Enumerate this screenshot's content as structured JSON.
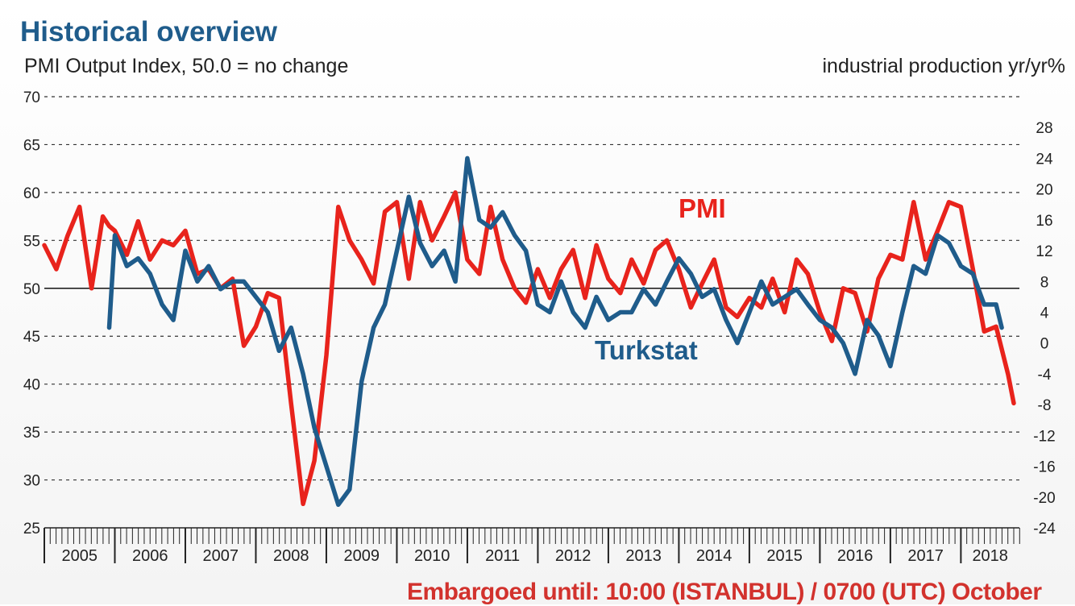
{
  "header": {
    "title": "Historical overview",
    "left_axis_label": "PMI Output Index, 50.0 = no change",
    "right_axis_label": "industrial production yr/yr%"
  },
  "footer": {
    "embargo": "Embargoed until: 10:00 (ISTANBUL) / 0700 (UTC) October"
  },
  "colors": {
    "pmi": "#e8231c",
    "turkstat": "#1f5c8b",
    "title": "#1f5c8b"
  },
  "chart_data": {
    "type": "line",
    "title": "Historical overview",
    "ylabel": "PMI Output Index, 50.0 = no change",
    "y2label": "industrial production yr/yr%",
    "ylim": [
      25,
      70
    ],
    "y2lim": [
      -24,
      32
    ],
    "yticks": [
      25,
      30,
      35,
      40,
      45,
      50,
      55,
      60,
      65,
      70
    ],
    "y2ticks": [
      -24,
      -20,
      -16,
      -12,
      -8,
      -4,
      0,
      4,
      8,
      12,
      16,
      20,
      24,
      28
    ],
    "xlim": [
      2005.0,
      2018.83
    ],
    "year_labels": [
      "2005",
      "2006",
      "2007",
      "2008",
      "2009",
      "2010",
      "2011",
      "2012",
      "2013",
      "2014",
      "2015",
      "2016",
      "2017",
      "2018"
    ],
    "reference_line": 50,
    "grid": "horizontal dashed",
    "series": [
      {
        "name": "PMI",
        "axis": "left",
        "color": "#e8231c",
        "x": [
          2005.0,
          2005.17,
          2005.33,
          2005.5,
          2005.67,
          2005.83,
          2005.92,
          2006.0,
          2006.17,
          2006.33,
          2006.5,
          2006.67,
          2006.83,
          2007.0,
          2007.17,
          2007.33,
          2007.5,
          2007.67,
          2007.83,
          2008.0,
          2008.17,
          2008.33,
          2008.5,
          2008.67,
          2008.83,
          2009.0,
          2009.17,
          2009.33,
          2009.5,
          2009.67,
          2009.83,
          2010.0,
          2010.17,
          2010.33,
          2010.5,
          2010.67,
          2010.83,
          2011.0,
          2011.17,
          2011.33,
          2011.5,
          2011.67,
          2011.83,
          2012.0,
          2012.17,
          2012.33,
          2012.5,
          2012.67,
          2012.83,
          2013.0,
          2013.17,
          2013.33,
          2013.5,
          2013.67,
          2013.83,
          2014.0,
          2014.17,
          2014.33,
          2014.5,
          2014.67,
          2014.83,
          2015.0,
          2015.17,
          2015.33,
          2015.5,
          2015.67,
          2015.83,
          2016.0,
          2016.17,
          2016.33,
          2016.5,
          2016.67,
          2016.83,
          2017.0,
          2017.17,
          2017.33,
          2017.5,
          2017.67,
          2017.83,
          2018.0,
          2018.17,
          2018.33,
          2018.5,
          2018.67,
          2018.75
        ],
        "values": [
          54.5,
          52.0,
          55.5,
          58.5,
          50.0,
          57.5,
          56.5,
          56.0,
          53.5,
          57.0,
          53.0,
          55.0,
          54.5,
          56.0,
          51.5,
          52.0,
          50.0,
          51.0,
          44.0,
          46.0,
          49.5,
          49.0,
          38.0,
          27.5,
          32.0,
          43.0,
          58.5,
          55.0,
          53.0,
          50.5,
          58.0,
          59.0,
          51.0,
          59.0,
          55.0,
          57.5,
          60.0,
          53.0,
          51.5,
          58.5,
          53.0,
          50.0,
          48.5,
          52.0,
          49.0,
          52.0,
          54.0,
          49.0,
          54.5,
          51.0,
          49.5,
          53.0,
          50.5,
          54.0,
          55.0,
          52.0,
          48.0,
          50.5,
          53.0,
          48.0,
          47.0,
          49.0,
          48.0,
          51.0,
          47.5,
          53.0,
          51.5,
          47.5,
          44.5,
          50.0,
          49.5,
          45.5,
          51.0,
          53.5,
          53.0,
          59.0,
          53.0,
          56.0,
          59.0,
          58.5,
          52.0,
          45.5,
          46.0,
          41.0,
          38.0
        ]
      },
      {
        "name": "Turkstat",
        "axis": "right",
        "color": "#1f5c8b",
        "x": [
          2005.92,
          2006.0,
          2006.17,
          2006.33,
          2006.5,
          2006.67,
          2006.83,
          2007.0,
          2007.17,
          2007.33,
          2007.5,
          2007.67,
          2007.83,
          2008.0,
          2008.17,
          2008.33,
          2008.5,
          2008.67,
          2008.83,
          2009.0,
          2009.17,
          2009.33,
          2009.5,
          2009.67,
          2009.83,
          2010.0,
          2010.17,
          2010.33,
          2010.5,
          2010.67,
          2010.83,
          2011.0,
          2011.17,
          2011.33,
          2011.5,
          2011.67,
          2011.83,
          2012.0,
          2012.17,
          2012.33,
          2012.5,
          2012.67,
          2012.83,
          2013.0,
          2013.17,
          2013.33,
          2013.5,
          2013.67,
          2013.83,
          2014.0,
          2014.17,
          2014.33,
          2014.5,
          2014.67,
          2014.83,
          2015.0,
          2015.17,
          2015.33,
          2015.5,
          2015.67,
          2015.83,
          2016.0,
          2016.17,
          2016.33,
          2016.5,
          2016.67,
          2016.83,
          2017.0,
          2017.17,
          2017.33,
          2017.5,
          2017.67,
          2017.83,
          2018.0,
          2018.17,
          2018.33,
          2018.5,
          2018.58
        ],
        "values": [
          2,
          14,
          10,
          11,
          9,
          5,
          3,
          12,
          8,
          10,
          7,
          8,
          8,
          6,
          4,
          -1,
          2,
          -4,
          -11,
          -16,
          -21,
          -19,
          -5,
          2,
          5,
          12,
          19,
          13,
          10,
          12,
          8,
          24,
          16,
          15,
          17,
          14,
          12,
          5,
          4,
          8,
          4,
          2,
          6,
          3,
          4,
          4,
          7,
          5,
          8,
          11,
          9,
          6,
          7,
          3,
          0,
          4,
          8,
          5,
          6,
          7,
          5,
          3,
          2,
          0,
          -4,
          3,
          1,
          -3,
          4,
          10,
          9,
          14,
          13,
          10,
          9,
          5,
          5,
          2
        ]
      }
    ]
  },
  "labels": {
    "pmi": "PMI",
    "turkstat": "Turkstat"
  }
}
